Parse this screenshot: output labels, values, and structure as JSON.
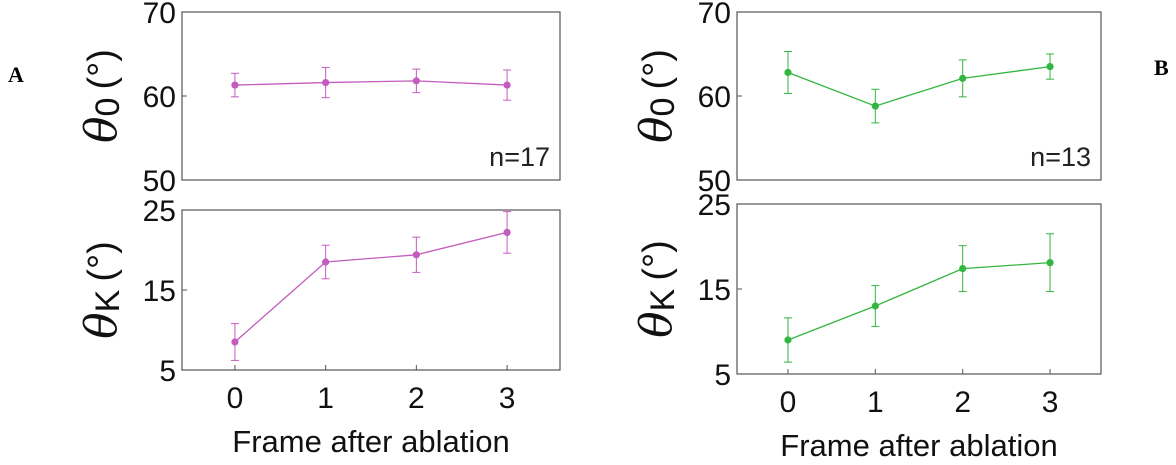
{
  "panels": {
    "A": {
      "label": "A",
      "color": "#c45bbf"
    },
    "B": {
      "label": "B",
      "color": "#33b640"
    }
  },
  "chart_data": [
    {
      "panel": "A",
      "type": "line",
      "error_bars": true,
      "x": [
        0,
        1,
        2,
        3
      ],
      "y": [
        61.3,
        61.6,
        61.8,
        61.3
      ],
      "y_err": [
        1.4,
        1.8,
        1.4,
        1.8
      ],
      "ylabel": {
        "symbol": "θ",
        "subscript": "0",
        "unit": "(°)"
      },
      "ylim": [
        50,
        70
      ],
      "yticks": [
        50,
        60,
        70
      ],
      "annotation": "n=17",
      "color": "#c45bbf"
    },
    {
      "panel": "A",
      "type": "line",
      "error_bars": true,
      "x": [
        0,
        1,
        2,
        3
      ],
      "y": [
        8.5,
        18.5,
        19.4,
        22.2
      ],
      "y_err": [
        2.3,
        2.1,
        2.2,
        2.6
      ],
      "ylabel": {
        "symbol": "θ",
        "subscript": "K",
        "unit": "(°)"
      },
      "ylim": [
        5,
        25
      ],
      "yticks": [
        5,
        15,
        25
      ],
      "xticks": [
        "0",
        "1",
        "2",
        "3"
      ],
      "xlabel": "Frame after ablation",
      "color": "#c45bbf"
    },
    {
      "panel": "B",
      "type": "line",
      "error_bars": true,
      "x": [
        0,
        1,
        2,
        3
      ],
      "y": [
        62.8,
        58.8,
        62.1,
        63.5
      ],
      "y_err": [
        2.5,
        2.0,
        2.2,
        1.5
      ],
      "ylabel": {
        "symbol": "θ",
        "subscript": "0",
        "unit": "(°)"
      },
      "ylim": [
        50,
        70
      ],
      "yticks": [
        50,
        60,
        70
      ],
      "annotation": "n=13",
      "color": "#33b640"
    },
    {
      "panel": "B",
      "type": "line",
      "error_bars": true,
      "x": [
        0,
        1,
        2,
        3
      ],
      "y": [
        9.0,
        13.0,
        17.4,
        18.1
      ],
      "y_err": [
        2.6,
        2.4,
        2.7,
        3.4
      ],
      "ylabel": {
        "symbol": "θ",
        "subscript": "K",
        "unit": "(°)"
      },
      "ylim": [
        5,
        25
      ],
      "yticks": [
        5,
        15,
        25
      ],
      "xticks": [
        "0",
        "1",
        "2",
        "3"
      ],
      "xlabel": "Frame after ablation",
      "color": "#33b640"
    }
  ]
}
